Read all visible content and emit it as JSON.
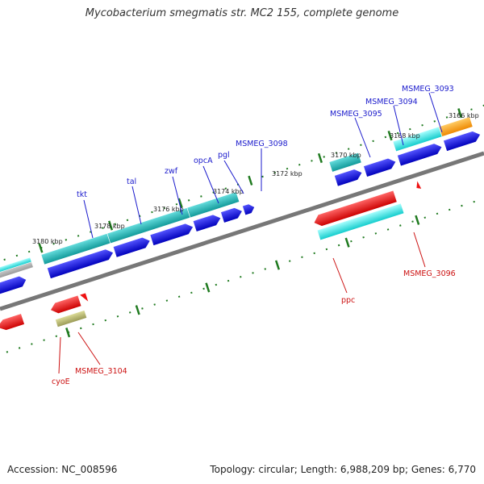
{
  "title": "Mycobacterium smegmatis str. MC2 155, complete genome",
  "footer": {
    "accession": "Accession: NC_008596",
    "info": "Topology: circular; Length: 6,988,209 bp; Genes: 6,770"
  },
  "colors": {
    "backbone": "#7f7f7f",
    "cds": "#0000ee",
    "cds_cyan": "#22dddd",
    "cds_teal": "#22a8a8",
    "rna_red": "#ee1111",
    "olive": "#bbbb77",
    "orange": "#ff9900",
    "grey": "#b8b8b8",
    "tick": "#1f7a1f",
    "label_forward": "#1a1acc",
    "label_reverse": "#cc1111"
  },
  "scale_labels": [
    "3180 kbp",
    "3178 kbp",
    "3176 kbp",
    "3174 kbp",
    "3172 kbp",
    "3170 kbp",
    "3168 kbp",
    "3166 kbp"
  ],
  "gene_labels": {
    "forward": [
      "tkt",
      "tal",
      "zwf",
      "opcA",
      "pgl",
      "MSMEG_3098",
      "MSMEG_3095",
      "MSMEG_3094",
      "MSMEG_3093"
    ],
    "reverse": [
      "ppc",
      "MSMEG_3096",
      "cyoE",
      "MSMEG_3104"
    ]
  }
}
